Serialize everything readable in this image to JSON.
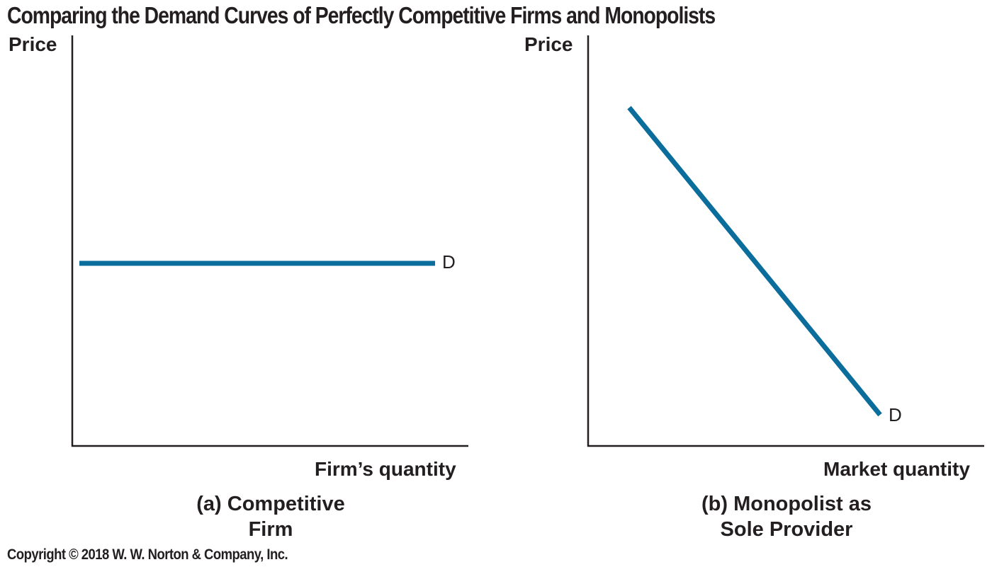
{
  "title": "Comparing the Demand Curves of Perfectly Competitive Firms and Monopolists",
  "colors": {
    "curve": "#0a6d9c",
    "axis": "#231f20",
    "text": "#231f20"
  },
  "panels": [
    {
      "id": "a",
      "y_axis_label": "Price",
      "x_axis_label": "Firm’s quantity",
      "curve_label": "D",
      "curve_shape": "horizontal",
      "caption_line1": "(a) Competitive",
      "caption_line2": "Firm"
    },
    {
      "id": "b",
      "y_axis_label": "Price",
      "x_axis_label": "Market quantity",
      "curve_label": "D",
      "curve_shape": "downward-sloping",
      "caption_line1": "(b) Monopolist as",
      "caption_line2": "Sole Provider"
    }
  ],
  "copyright": "Copyright © 2018 W. W. Norton & Company, Inc."
}
